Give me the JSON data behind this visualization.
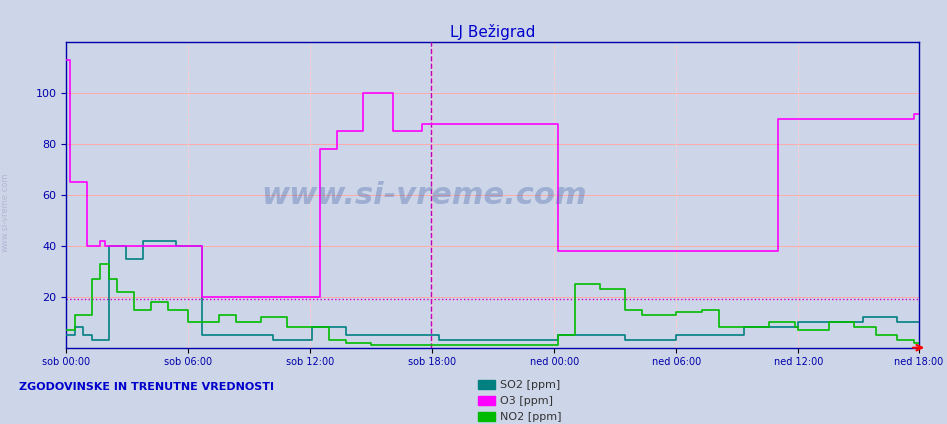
{
  "title": "LJ Bežigrad",
  "title_color": "#0000cc",
  "bg_color": "#cdd5e8",
  "ylabel": "",
  "xlabel": "",
  "ylim": [
    0,
    120
  ],
  "yticks": [
    20,
    40,
    60,
    80,
    100
  ],
  "hline_y": 19,
  "hline_color": "#cc00cc",
  "so2_color": "#008080",
  "o3_color": "#ff00ff",
  "no2_color": "#00bb00",
  "vline_color": "#ff88ff",
  "grid_h_color": "#ffaaaa",
  "grid_v_color": "#ffcccc",
  "axis_color": "#0000aa",
  "footnote": "ZGODOVINSKE IN TRENUTNE VREDNOSTI",
  "footnote_color": "#0000cc",
  "legend_labels": [
    "SO2 [ppm]",
    "O3 [ppm]",
    "NO2 [ppm]"
  ],
  "xtick_positions": [
    0,
    72,
    144,
    216,
    288,
    360,
    432,
    503
  ],
  "xtick_labels": [
    "sob 00:00",
    "sob 06:00",
    "sob 12:00",
    "sob 18:00",
    "ned 00:00",
    "ned 06:00",
    "ned 12:00",
    "ned 18:00"
  ],
  "n_points": 504,
  "current_time_idx": 215,
  "watermark": "www.si-vreme.com"
}
